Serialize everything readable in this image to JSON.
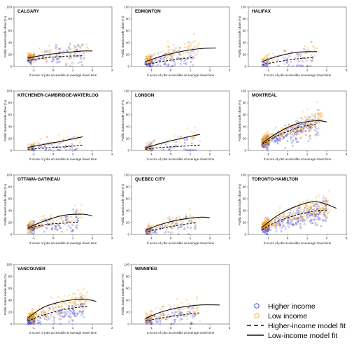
{
  "legend": {
    "higher_income": "Higher income",
    "low_income": "Low income",
    "higher_fit": "Higher-income model fit",
    "low_fit": "Low-income model fit"
  },
  "colors": {
    "higher": "#3b3bd6",
    "low": "#f0a21e",
    "fit": "#111111"
  },
  "chart_data": [
    {
      "type": "scatter",
      "title": "CALGARY",
      "xlabel": "Z-score of jobs accessible at average travel time",
      "ylabel": "Public transit mode share (%)",
      "xlim": [
        -2,
        3
      ],
      "ylim": [
        0,
        100
      ],
      "xticks": [
        -1,
        0,
        1,
        2,
        3
      ],
      "yticks": [
        0,
        20,
        40,
        60,
        80,
        100
      ],
      "series": [
        {
          "name": "Higher income",
          "x_range": [
            -1.3,
            1.6
          ],
          "y_mean": [
            12,
            22
          ],
          "count": 120
        },
        {
          "name": "Low income",
          "x_range": [
            -1.3,
            1.8
          ],
          "y_mean": [
            16,
            28
          ],
          "count": 110
        }
      ],
      "fits": {
        "higher": {
          "x": [
            -1.3,
            -0.5,
            0.5,
            1.5
          ],
          "y": [
            10,
            14,
            17,
            18
          ]
        },
        "low": {
          "x": [
            -1.3,
            -0.5,
            0.5,
            1.5,
            2.0
          ],
          "y": [
            14,
            19,
            23,
            26,
            26
          ]
        }
      }
    },
    {
      "type": "scatter",
      "title": "EDMONTON",
      "xlabel": "Z-score of jobs accessible at average travel time",
      "ylabel": "Public transit mode share (%)",
      "xlim": [
        -2,
        3
      ],
      "ylim": [
        0,
        100
      ],
      "xticks": [
        -1,
        0,
        1,
        2,
        3
      ],
      "yticks": [
        0,
        20,
        40,
        60,
        80,
        100
      ],
      "series": [
        {
          "name": "Higher income",
          "x_range": [
            -1.3,
            1.2
          ],
          "y_mean": [
            5,
            18
          ],
          "count": 120
        },
        {
          "name": "Low income",
          "x_range": [
            -1.3,
            1.5
          ],
          "y_mean": [
            10,
            32
          ],
          "count": 120
        }
      ],
      "fits": {
        "higher": {
          "x": [
            -1.3,
            -0.5,
            0.5,
            1.2
          ],
          "y": [
            3,
            8,
            13,
            15
          ]
        },
        "low": {
          "x": [
            -1.3,
            -0.5,
            0.5,
            1.5,
            2.3
          ],
          "y": [
            8,
            17,
            25,
            30,
            31
          ]
        }
      }
    },
    {
      "type": "scatter",
      "title": "HALIFAX",
      "xlabel": "Z-score of jobs accessible at average travel time",
      "ylabel": "Public transit mode share (%)",
      "xlim": [
        -2,
        3
      ],
      "ylim": [
        0,
        100
      ],
      "xticks": [
        -1,
        0,
        1,
        2,
        3
      ],
      "yticks": [
        0,
        20,
        40,
        60,
        80,
        100
      ],
      "series": [
        {
          "name": "Higher income",
          "x_range": [
            -1.3,
            1.3
          ],
          "y_mean": [
            5,
            16
          ],
          "count": 70
        },
        {
          "name": "Low income",
          "x_range": [
            -1.3,
            1.5
          ],
          "y_mean": [
            10,
            24
          ],
          "count": 60
        }
      ],
      "fits": {
        "higher": {
          "x": [
            -1.3,
            -0.5,
            0.5,
            1.3
          ],
          "y": [
            3,
            8,
            13,
            15
          ]
        },
        "low": {
          "x": [
            -1.3,
            -0.5,
            0.5,
            1.5
          ],
          "y": [
            8,
            17,
            24,
            25
          ]
        }
      }
    },
    {
      "type": "scatter",
      "title": "KITCHENER-CAMBRIDGE-WATERLOO",
      "xlabel": "Z-score of jobs accessible at average travel time",
      "ylabel": "Public transit mode share (%)",
      "xlim": [
        -2,
        3
      ],
      "ylim": [
        0,
        100
      ],
      "xticks": [
        -1,
        0,
        1,
        2,
        3
      ],
      "yticks": [
        0,
        20,
        40,
        60,
        80,
        100
      ],
      "series": [
        {
          "name": "Higher income",
          "x_range": [
            -1.3,
            1.3
          ],
          "y_mean": [
            3,
            9
          ],
          "count": 60
        },
        {
          "name": "Low income",
          "x_range": [
            -1.3,
            1.5
          ],
          "y_mean": [
            6,
            20
          ],
          "count": 55
        }
      ],
      "fits": {
        "higher": {
          "x": [
            -1.3,
            -0.5,
            0.5,
            1.5
          ],
          "y": [
            2,
            4,
            6,
            9
          ]
        },
        "low": {
          "x": [
            -1.3,
            -0.5,
            0.5,
            1.5
          ],
          "y": [
            5,
            10,
            16,
            23
          ]
        }
      }
    },
    {
      "type": "scatter",
      "title": "LONDON",
      "xlabel": "Z-score of jobs accessible at average travel time",
      "ylabel": "Public transit mode share (%)",
      "xlim": [
        -2,
        3
      ],
      "ylim": [
        0,
        100
      ],
      "xticks": [
        -1,
        0,
        1,
        2,
        3
      ],
      "yticks": [
        0,
        20,
        40,
        60,
        80,
        100
      ],
      "series": [
        {
          "name": "Higher income",
          "x_range": [
            -1.3,
            1.3
          ],
          "y_mean": [
            3,
            10
          ],
          "count": 60
        },
        {
          "name": "Low income",
          "x_range": [
            -1.3,
            1.5
          ],
          "y_mean": [
            5,
            25
          ],
          "count": 55
        }
      ],
      "fits": {
        "higher": {
          "x": [
            -1.3,
            -0.5,
            0.5,
            1.5
          ],
          "y": [
            2,
            5,
            7,
            9
          ]
        },
        "low": {
          "x": [
            -1.3,
            -0.5,
            0.5,
            1.5
          ],
          "y": [
            4,
            12,
            20,
            27
          ]
        }
      }
    },
    {
      "type": "scatter",
      "title": "MONTREAL",
      "xlabel": "Z-score of jobs accessible at average travel time",
      "ylabel": "Public transit mode share (%)",
      "xlim": [
        -2,
        3
      ],
      "ylim": [
        0,
        100
      ],
      "xticks": [
        -1,
        0,
        1,
        2,
        3
      ],
      "yticks": [
        0,
        20,
        40,
        60,
        80,
        100
      ],
      "series": [
        {
          "name": "Higher income",
          "x_range": [
            -1.3,
            1.6
          ],
          "y_mean": [
            12,
            45
          ],
          "count": 300
        },
        {
          "name": "Low income",
          "x_range": [
            -1.3,
            1.8
          ],
          "y_mean": [
            15,
            55
          ],
          "count": 300
        }
      ],
      "fits": {
        "higher": {
          "x": [
            -1.3,
            -0.5,
            0.5,
            1.2,
            1.5
          ],
          "y": [
            10,
            25,
            38,
            43,
            44
          ]
        },
        "low": {
          "x": [
            -1.3,
            -0.5,
            0.5,
            1.5,
            2.0
          ],
          "y": [
            12,
            30,
            45,
            50,
            48
          ]
        }
      }
    },
    {
      "type": "scatter",
      "title": "OTTAWA-GATINEAU",
      "xlabel": "Z-score of jobs accessible at average travel time",
      "ylabel": "Public transit mode share (%)",
      "xlim": [
        -2,
        3
      ],
      "ylim": [
        0,
        100
      ],
      "xticks": [
        -1,
        0,
        1,
        2,
        3
      ],
      "yticks": [
        0,
        20,
        40,
        60,
        80,
        100
      ],
      "series": [
        {
          "name": "Higher income",
          "x_range": [
            -1.3,
            1.3
          ],
          "y_mean": [
            10,
            22
          ],
          "count": 130
        },
        {
          "name": "Low income",
          "x_range": [
            -1.3,
            1.5
          ],
          "y_mean": [
            12,
            35
          ],
          "count": 120
        }
      ],
      "fits": {
        "higher": {
          "x": [
            -1.3,
            -0.5,
            0.5,
            1.3
          ],
          "y": [
            10,
            16,
            19,
            20
          ]
        },
        "low": {
          "x": [
            -1.3,
            -0.5,
            0.5,
            1.5,
            2.0
          ],
          "y": [
            11,
            22,
            32,
            34,
            31
          ]
        }
      }
    },
    {
      "type": "scatter",
      "title": "QUEBEC CITY",
      "xlabel": "Z-score of jobs accessible at average travel time",
      "ylabel": "Public transit mode share (%)",
      "xlim": [
        -2,
        3
      ],
      "ylim": [
        0,
        100
      ],
      "xticks": [
        -1,
        0,
        1,
        2,
        3
      ],
      "yticks": [
        0,
        20,
        40,
        60,
        80,
        100
      ],
      "series": [
        {
          "name": "Higher income",
          "x_range": [
            -1.3,
            1.3
          ],
          "y_mean": [
            5,
            20
          ],
          "count": 90
        },
        {
          "name": "Low income",
          "x_range": [
            -1.3,
            1.5
          ],
          "y_mean": [
            8,
            30
          ],
          "count": 90
        }
      ],
      "fits": {
        "higher": {
          "x": [
            -1.3,
            -0.5,
            0.5,
            1.3
          ],
          "y": [
            4,
            10,
            16,
            20
          ]
        },
        "low": {
          "x": [
            -1.3,
            -0.5,
            0.5,
            1.5,
            2.0
          ],
          "y": [
            7,
            17,
            25,
            29,
            28
          ]
        }
      }
    },
    {
      "type": "scatter",
      "title": "TORONTO-HAMILTON",
      "xlabel": "Z-score of jobs accessible at average travel time",
      "ylabel": "Public transit mode share (%)",
      "xlim": [
        -2,
        3
      ],
      "ylim": [
        0,
        100
      ],
      "xticks": [
        -1,
        0,
        1,
        2,
        3
      ],
      "yticks": [
        0,
        20,
        40,
        60,
        80,
        100
      ],
      "series": [
        {
          "name": "Higher income",
          "x_range": [
            -1.3,
            2.0
          ],
          "y_mean": [
            10,
            40
          ],
          "count": 320
        },
        {
          "name": "Low income",
          "x_range": [
            -1.3,
            2.2
          ],
          "y_mean": [
            15,
            52
          ],
          "count": 320
        }
      ],
      "fits": {
        "higher": {
          "x": [
            -1.3,
            -0.5,
            0.5,
            1.5,
            2.0
          ],
          "y": [
            8,
            22,
            33,
            40,
            40
          ]
        },
        "low": {
          "x": [
            -1.3,
            -0.5,
            0.5,
            1.5,
            2.5
          ],
          "y": [
            12,
            32,
            48,
            55,
            44
          ]
        }
      }
    },
    {
      "type": "scatter",
      "title": "VANCOUVER",
      "xlabel": "Z-score of jobs accessible at average travel time",
      "ylabel": "Public transit mode share (%)",
      "xlim": [
        -2,
        3
      ],
      "ylim": [
        0,
        100
      ],
      "xticks": [
        -1,
        0,
        1,
        2,
        3
      ],
      "yticks": [
        0,
        20,
        40,
        60,
        80,
        100
      ],
      "series": [
        {
          "name": "Higher income",
          "x_range": [
            -1.3,
            1.6
          ],
          "y_mean": [
            5,
            28
          ],
          "count": 200
        },
        {
          "name": "Low income",
          "x_range": [
            -1.3,
            1.8
          ],
          "y_mean": [
            10,
            42
          ],
          "count": 200
        }
      ],
      "fits": {
        "higher": {
          "x": [
            -1.3,
            -0.5,
            0.5,
            1.5,
            1.8
          ],
          "y": [
            5,
            15,
            24,
            29,
            30
          ]
        },
        "low": {
          "x": [
            -1.3,
            -0.5,
            0.5,
            1.5,
            2.2
          ],
          "y": [
            10,
            28,
            38,
            42,
            38
          ]
        }
      }
    },
    {
      "type": "scatter",
      "title": "WINNIPEG",
      "xlabel": "Z-score of jobs accessible at average travel time",
      "ylabel": "Public transit mode share (%)",
      "xlim": [
        -2,
        3
      ],
      "ylim": [
        0,
        100
      ],
      "xticks": [
        -1,
        0,
        1,
        2,
        3
      ],
      "yticks": [
        0,
        20,
        40,
        60,
        80,
        100
      ],
      "series": [
        {
          "name": "Higher income",
          "x_range": [
            -1.3,
            1.3
          ],
          "y_mean": [
            5,
            18
          ],
          "count": 100
        },
        {
          "name": "Low income",
          "x_range": [
            -1.3,
            1.5
          ],
          "y_mean": [
            10,
            30
          ],
          "count": 100
        }
      ],
      "fits": {
        "higher": {
          "x": [
            -1.3,
            -0.5,
            0.5,
            1.5
          ],
          "y": [
            5,
            10,
            15,
            19
          ]
        },
        "low": {
          "x": [
            -1.3,
            -0.5,
            0.5,
            1.5,
            2.5
          ],
          "y": [
            9,
            20,
            28,
            32,
            32
          ]
        }
      }
    }
  ]
}
